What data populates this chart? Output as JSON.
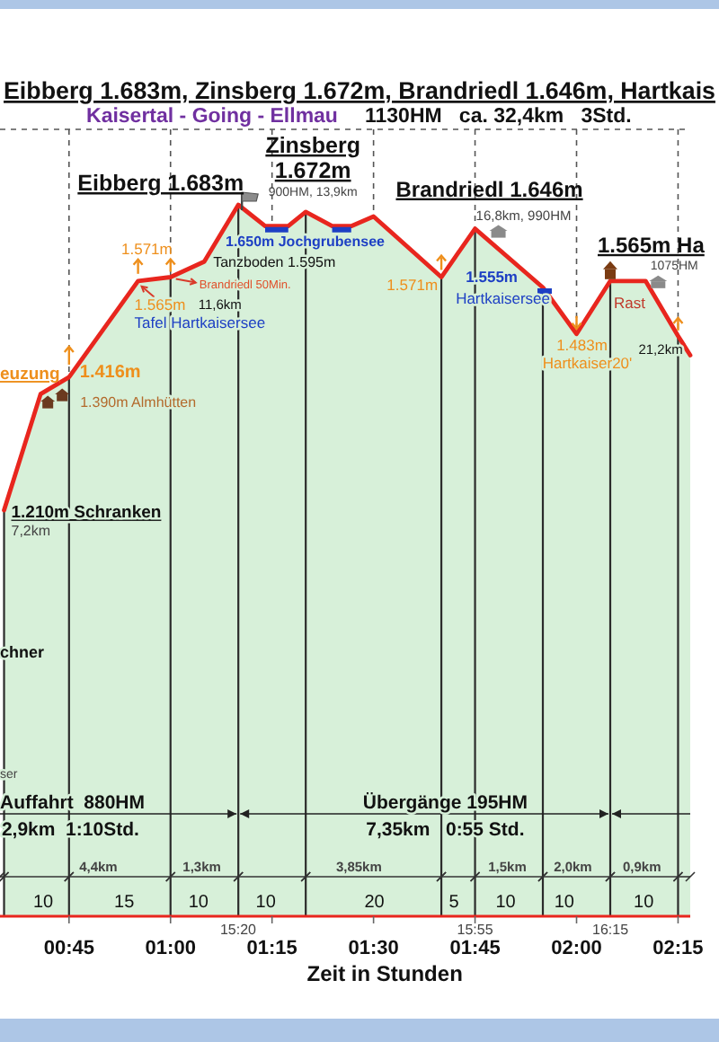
{
  "chart_data": {
    "type": "area",
    "title": "Eibberg 1.683m, Zinsberg 1.672m, Brandriedl 1.646m, Hartkais",
    "subtitle": "Kaisertal - Going - Ellmau",
    "xlabel": "Zeit in Stunden",
    "x": [
      0.59,
      0.68,
      0.75,
      0.92,
      1.0,
      1.083,
      1.167,
      1.233,
      1.29,
      1.333,
      1.398,
      1.445,
      1.5,
      1.667,
      1.75,
      1.917,
      2.0,
      2.083,
      2.17,
      2.25,
      2.28
    ],
    "values": [
      1210,
      1390,
      1416,
      1565,
      1571,
      1595,
      1683,
      1650,
      1650,
      1672,
      1650,
      1650,
      1665,
      1571,
      1646,
      1555,
      1483,
      1565,
      1565,
      1480,
      1450
    ],
    "value_labels": [
      "1.210m Schranken",
      "1.390m Almhütten",
      "1.416m",
      "1.565m",
      "1.571m",
      "Tanzboden 1.595m",
      "Eibberg 1.683m",
      "1.650m Jochgrubensee",
      null,
      "Zinsberg 1.672m",
      null,
      null,
      null,
      "1.571m",
      "Brandriedl 1.646m",
      "1.555m",
      "1.483m",
      "1.565m Ha",
      null,
      null,
      null
    ],
    "color": "#e8261e",
    "xlim": [
      0.58,
      2.28
    ],
    "xticks": [
      {
        "value": 0.75,
        "label": "00:45"
      },
      {
        "value": 1.0,
        "label": "01:00"
      },
      {
        "value": 1.25,
        "label": "01:15"
      },
      {
        "value": 1.5,
        "label": "01:30"
      },
      {
        "value": 1.75,
        "label": "01:45"
      },
      {
        "value": 2.0,
        "label": "02:00"
      },
      {
        "value": 2.25,
        "label": "02:15"
      }
    ],
    "grid": "x",
    "tick_labels": "x",
    "ref_lines": [
      {
        "axis": "x",
        "value": 0.59
      },
      {
        "axis": "x",
        "value": 0.75
      },
      {
        "axis": "x",
        "value": 1.0
      },
      {
        "axis": "x",
        "value": 1.167
      },
      {
        "axis": "x",
        "value": 1.333
      },
      {
        "axis": "x",
        "value": 1.667
      },
      {
        "axis": "x",
        "value": 1.75
      },
      {
        "axis": "x",
        "value": 1.917
      },
      {
        "axis": "x",
        "value": 2.083
      },
      {
        "axis": "x",
        "value": 2.25
      }
    ],
    "annotations": [
      "1130HM   ca. 32,4km   3Std.",
      {
        "text": "7,2km",
        "x": 0.59,
        "y": 1210
      },
      "euzung",
      "11,6km",
      {
        "text": "Tafel Hartkaisersee",
        "x": 0.92,
        "y": 1565
      },
      {
        "text": "Brandriedl 50Min.",
        "x": 1.0,
        "y": 1571
      },
      {
        "text": "900HM, 13,9km",
        "x": 1.333,
        "y": 1672
      },
      {
        "text": "16,8km, 990HM",
        "x": 1.75,
        "y": 1646
      },
      {
        "text": "Hartkaisersee",
        "x": 1.917,
        "y": 1555
      },
      {
        "text": "Hartkaiser20'",
        "x": 2.0,
        "y": 1483
      },
      {
        "text": "Rast",
        "x": 2.083,
        "y": 1565
      },
      "1075HM",
      {
        "text": "21,2km",
        "x": 2.25,
        "y": 1480
      },
      "chner",
      "ser",
      "Auffahrt  880HM",
      "2,9km  1:10Std.",
      "Übergänge 195HM",
      "7,35km   0:55 Std.",
      "4,4km",
      "1,3km",
      "3,85km",
      "1,5km",
      "2,0km",
      "0,9km",
      "10",
      "15",
      "10",
      "10",
      "20",
      "5",
      "10",
      "10",
      "10",
      "15:20",
      "15:55",
      "16:15"
    ]
  }
}
